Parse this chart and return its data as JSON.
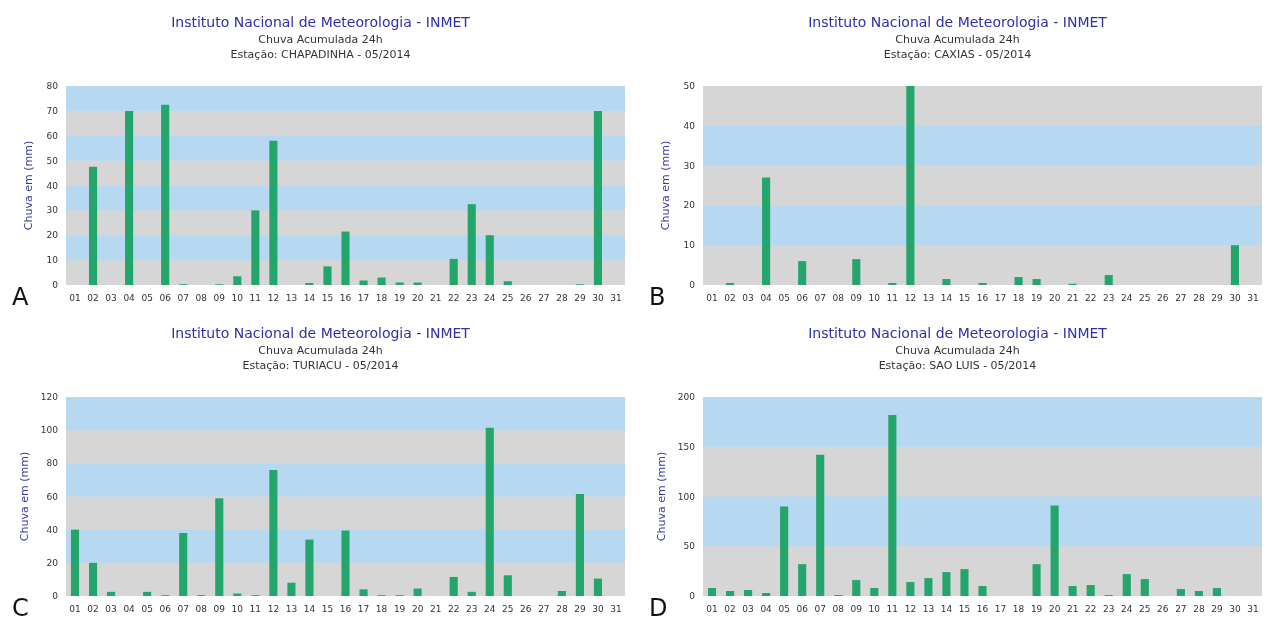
{
  "chart_data": [
    {
      "type": "bar",
      "title": "Instituto Nacional de Meteorologia - INMET",
      "subtitle": "Chuva Acumulada 24h\nEstação: CHAPADINHA - 05/2014",
      "ylabel": "Chuva em (mm)",
      "annotations": [
        "A"
      ],
      "categories": [
        "01",
        "02",
        "03",
        "04",
        "05",
        "06",
        "07",
        "08",
        "09",
        "10",
        "11",
        "12",
        "13",
        "14",
        "15",
        "16",
        "17",
        "18",
        "19",
        "20",
        "21",
        "22",
        "23",
        "24",
        "25",
        "26",
        "27",
        "28",
        "29",
        "30",
        "31"
      ],
      "color": "#24a56c",
      "values": [
        0,
        47.5,
        0,
        70,
        0,
        72.5,
        0.3,
        0,
        0.3,
        3.5,
        30,
        58,
        0,
        0.8,
        7.5,
        21.5,
        1.8,
        3,
        1,
        1,
        0,
        10.5,
        32.5,
        20,
        1.5,
        0,
        0,
        0,
        0.3,
        70,
        0
      ],
      "ylim": [
        0,
        80
      ],
      "yticks": [
        0,
        10,
        20,
        30,
        40,
        50,
        60,
        70,
        80
      ],
      "bands": [
        {
          "axis": "y",
          "from": 10,
          "to": 20,
          "color": "#b7d8f1"
        },
        {
          "axis": "y",
          "from": 30,
          "to": 40,
          "color": "#b7d8f1"
        },
        {
          "axis": "y",
          "from": 50,
          "to": 60,
          "color": "#b7d8f1"
        },
        {
          "axis": "y",
          "from": 70,
          "to": 80,
          "color": "#b7d8f1"
        }
      ]
    },
    {
      "type": "bar",
      "title": "Instituto Nacional de Meteorologia - INMET",
      "subtitle": "Chuva Acumulada 24h\nEstação: CAXIAS - 05/2014",
      "ylabel": "Chuva em (mm)",
      "annotations": [
        "B"
      ],
      "categories": [
        "01",
        "02",
        "03",
        "04",
        "05",
        "06",
        "07",
        "08",
        "09",
        "10",
        "11",
        "12",
        "13",
        "14",
        "15",
        "16",
        "17",
        "18",
        "19",
        "20",
        "21",
        "22",
        "23",
        "24",
        "25",
        "26",
        "27",
        "28",
        "29",
        "30",
        "31"
      ],
      "color": "#24a56c",
      "values": [
        0,
        0.5,
        0,
        27,
        0,
        6,
        0,
        0,
        6.5,
        0,
        0.5,
        50,
        0,
        1.5,
        0,
        0.5,
        0,
        2,
        1.5,
        0,
        0.3,
        0,
        2.5,
        0,
        0,
        0,
        0,
        0,
        0,
        10,
        0
      ],
      "ylim": [
        0,
        50
      ],
      "yticks": [
        0,
        10,
        20,
        30,
        40,
        50
      ],
      "bands": [
        {
          "axis": "y",
          "from": 10,
          "to": 20,
          "color": "#b7d8f1"
        },
        {
          "axis": "y",
          "from": 30,
          "to": 40,
          "color": "#b7d8f1"
        }
      ]
    },
    {
      "type": "bar",
      "title": "Instituto Nacional de Meteorologia - INMET",
      "subtitle": "Chuva Acumulada 24h\nEstação: TURIACU - 05/2014",
      "ylabel": "Chuva em (mm)",
      "annotations": [
        "C"
      ],
      "categories": [
        "01",
        "02",
        "03",
        "04",
        "05",
        "06",
        "07",
        "08",
        "09",
        "10",
        "11",
        "12",
        "13",
        "14",
        "15",
        "16",
        "17",
        "18",
        "19",
        "20",
        "21",
        "22",
        "23",
        "24",
        "25",
        "26",
        "27",
        "28",
        "29",
        "30",
        "31"
      ],
      "color": "#24a56c",
      "values": [
        40,
        20,
        2.5,
        0,
        2.5,
        0.5,
        38,
        0.5,
        59,
        1.5,
        0.5,
        76,
        8,
        34,
        0,
        39.5,
        4,
        0.5,
        0.5,
        4.5,
        0,
        11.5,
        2.5,
        101.5,
        12.5,
        0,
        0,
        3,
        61.5,
        10.5,
        0
      ],
      "ylim": [
        0,
        120
      ],
      "yticks": [
        0,
        20,
        40,
        60,
        80,
        100,
        120
      ],
      "bands": [
        {
          "axis": "y",
          "from": 20,
          "to": 40,
          "color": "#b7d8f1"
        },
        {
          "axis": "y",
          "from": 60,
          "to": 80,
          "color": "#b7d8f1"
        },
        {
          "axis": "y",
          "from": 100,
          "to": 120,
          "color": "#b7d8f1"
        }
      ]
    },
    {
      "type": "bar",
      "title": "Instituto Nacional de Meteorologia - INMET",
      "subtitle": "Chuva Acumulada 24h\nEstação: SAO LUIS - 05/2014",
      "ylabel": "Chuva em (mm)",
      "annotations": [
        "D"
      ],
      "categories": [
        "01",
        "02",
        "03",
        "04",
        "05",
        "06",
        "07",
        "08",
        "09",
        "10",
        "11",
        "12",
        "13",
        "14",
        "15",
        "16",
        "17",
        "18",
        "19",
        "20",
        "21",
        "22",
        "23",
        "24",
        "25",
        "26",
        "27",
        "28",
        "29",
        "30",
        "31"
      ],
      "color": "#24a56c",
      "values": [
        8,
        5,
        6,
        3,
        90,
        32,
        142,
        1,
        16,
        8,
        182,
        14,
        18,
        24,
        27,
        10,
        0,
        0,
        32,
        91,
        10,
        11,
        1,
        22,
        17,
        0,
        7,
        5,
        8,
        0,
        0
      ],
      "ylim": [
        0,
        200
      ],
      "yticks": [
        0,
        50,
        100,
        150,
        200
      ],
      "bands": [
        {
          "axis": "y",
          "from": 50,
          "to": 100,
          "color": "#b7d8f1"
        },
        {
          "axis": "y",
          "from": 150,
          "to": 200,
          "color": "#b7d8f1"
        }
      ]
    }
  ]
}
